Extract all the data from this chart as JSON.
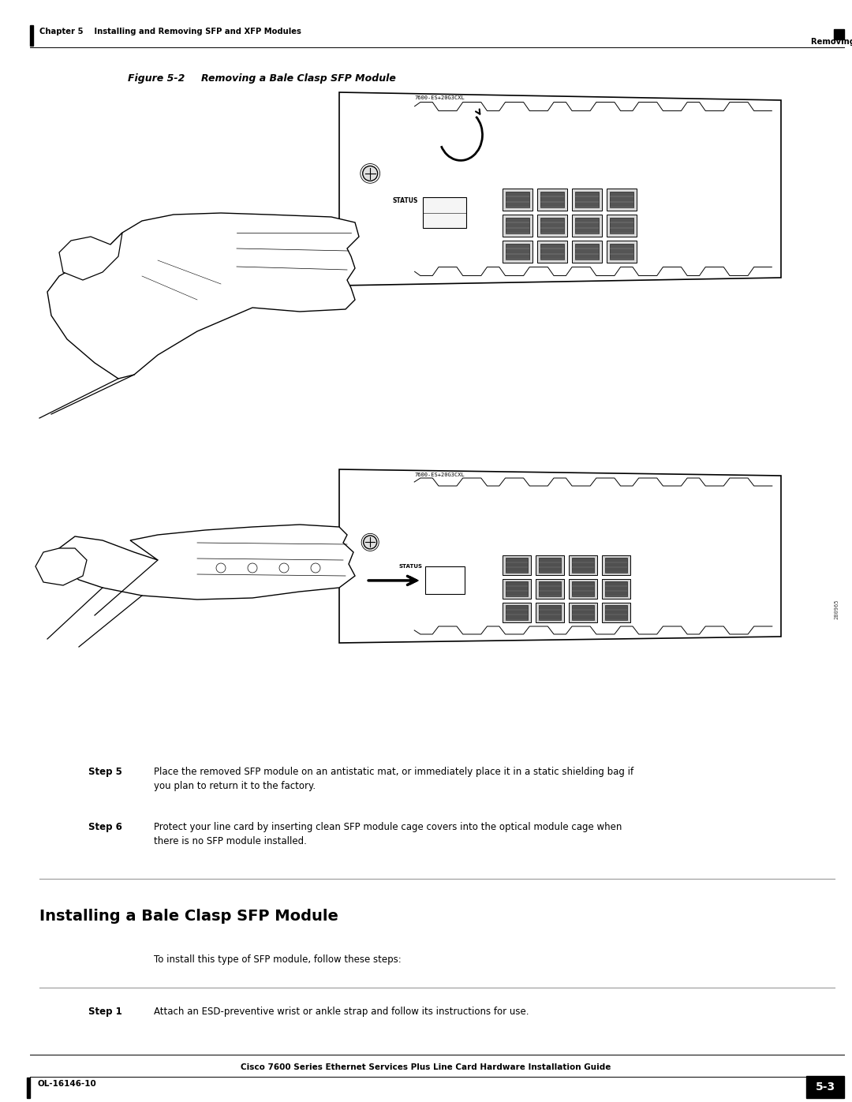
{
  "bg_color": "#ffffff",
  "page_width": 10.8,
  "page_height": 13.97,
  "header_left": "Chapter 5    Installing and Removing SFP and XFP Modules",
  "header_right": "Removing and Installing SFP Modules",
  "footer_center": "Cisco 7600 Series Ethernet Services Plus Line Card Hardware Installation Guide",
  "footer_left": "OL-16146-10",
  "footer_right": "5-3",
  "figure_label": "Figure 5-2",
  "figure_caption": "Removing a Bale Clasp SFP Module",
  "step5_label": "Step 5",
  "step5_text": "Place the removed SFP module on an antistatic mat, or immediately place it in a static shielding bag if\nyou plan to return it to the factory.",
  "step6_label": "Step 6",
  "step6_text": "Protect your line card by inserting clean SFP module cage covers into the optical module cage when\nthere is no SFP module installed.",
  "section_title": "Installing a Bale Clasp SFP Module",
  "section_intro": "To install this type of SFP module, follow these steps:",
  "step1_label": "Step 1",
  "step1_text": "Attach an ESD-preventive wrist or ankle strap and follow its instructions for use.",
  "text_color": "#000000",
  "gray_line_color": "#999999",
  "black_color": "#000000",
  "white_color": "#ffffff",
  "light_gray": "#dddddd",
  "diagram_label": "7600-ES+20G3CXL",
  "watermark": "280965"
}
